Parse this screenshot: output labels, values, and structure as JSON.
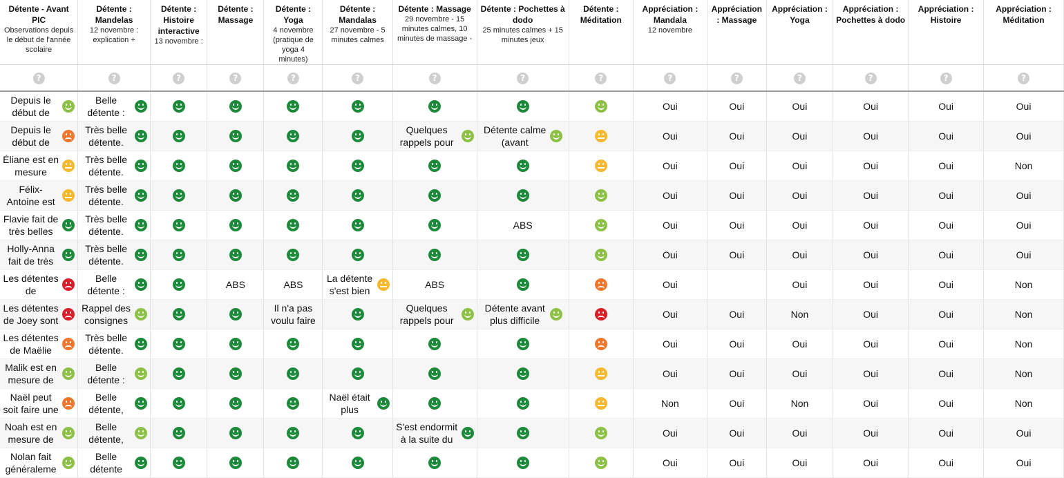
{
  "colors": {
    "dark-green": "#1c8a3a",
    "light-green": "#8dc046",
    "yellow": "#f5b82e",
    "orange": "#f0772d",
    "red": "#d91e2a"
  },
  "columns": [
    {
      "title": "Détente - Avant PIC",
      "sub": "Observations depuis le début de l'année scolaire"
    },
    {
      "title": "Détente : Mandelas",
      "sub": "12 novembre : explication +"
    },
    {
      "title": "Détente : Histoire interactive",
      "sub": "13 novembre :"
    },
    {
      "title": "Détente : Massage",
      "sub": ""
    },
    {
      "title": "Détente : Yoga",
      "sub": "4 novembre (pratique de yoga 4 minutes)"
    },
    {
      "title": "Détente : Mandalas",
      "sub": "27 novembre - 5 minutes calmes"
    },
    {
      "title": "Détente : Massage",
      "sub": "29 novembre - 15 minutes calmes, 10 minutes de massage -"
    },
    {
      "title": "Détente : Pochettes à dodo",
      "sub": "25 minutes calmes + 15 minutes jeux"
    },
    {
      "title": "Détente : Méditation",
      "sub": ""
    },
    {
      "title": "Appréciation : Mandala",
      "sub": "12 novembre"
    },
    {
      "title": "Appréciation : Massage",
      "sub": ""
    },
    {
      "title": "Appréciation : Yoga",
      "sub": ""
    },
    {
      "title": "Appréciation : Pochettes à dodo",
      "sub": ""
    },
    {
      "title": "Appréciation : Histoire",
      "sub": ""
    },
    {
      "title": "Appréciation : Méditation",
      "sub": ""
    }
  ],
  "help_icon": "?",
  "rows": [
    {
      "cells": [
        {
          "text": "Depuis le début de",
          "face": "light-green"
        },
        {
          "text": "Belle détente :",
          "face": "dark-green"
        },
        {
          "face": "dark-green"
        },
        {
          "face": "dark-green"
        },
        {
          "face": "dark-green"
        },
        {
          "face": "dark-green"
        },
        {
          "face": "dark-green"
        },
        {
          "face": "dark-green"
        },
        {
          "face": "light-green"
        },
        {
          "text": "Oui"
        },
        {
          "text": "Oui"
        },
        {
          "text": "Oui"
        },
        {
          "text": "Oui"
        },
        {
          "text": "Oui"
        },
        {
          "text": "Oui"
        }
      ]
    },
    {
      "cells": [
        {
          "text": "Depuis le début de",
          "face": "orange"
        },
        {
          "text": "Très belle détente.",
          "face": "dark-green"
        },
        {
          "face": "dark-green"
        },
        {
          "face": "dark-green"
        },
        {
          "face": "dark-green"
        },
        {
          "face": "dark-green"
        },
        {
          "text": "Quelques rappels pour",
          "face": "light-green"
        },
        {
          "text": "Détente calme (avant",
          "face": "light-green"
        },
        {
          "face": "yellow"
        },
        {
          "text": "Oui"
        },
        {
          "text": "Oui"
        },
        {
          "text": "Oui"
        },
        {
          "text": "Oui"
        },
        {
          "text": "Oui"
        },
        {
          "text": "Oui"
        }
      ]
    },
    {
      "cells": [
        {
          "text": "Éliane est en mesure",
          "face": "yellow"
        },
        {
          "text": "Très belle détente.",
          "face": "dark-green"
        },
        {
          "face": "dark-green"
        },
        {
          "face": "dark-green"
        },
        {
          "face": "dark-green"
        },
        {
          "face": "dark-green"
        },
        {
          "face": "dark-green"
        },
        {
          "face": "dark-green"
        },
        {
          "face": "yellow"
        },
        {
          "text": "Oui"
        },
        {
          "text": "Oui"
        },
        {
          "text": "Oui"
        },
        {
          "text": "Oui"
        },
        {
          "text": "Oui"
        },
        {
          "text": "Non"
        }
      ]
    },
    {
      "cells": [
        {
          "text": "Félix-Antoine est",
          "face": "yellow"
        },
        {
          "text": "Très belle détente.",
          "face": "dark-green"
        },
        {
          "face": "dark-green"
        },
        {
          "face": "dark-green"
        },
        {
          "face": "dark-green"
        },
        {
          "face": "dark-green"
        },
        {
          "face": "dark-green"
        },
        {
          "face": "dark-green"
        },
        {
          "face": "light-green"
        },
        {
          "text": "Oui"
        },
        {
          "text": "Oui"
        },
        {
          "text": "Oui"
        },
        {
          "text": "Oui"
        },
        {
          "text": "Oui"
        },
        {
          "text": "Oui"
        }
      ]
    },
    {
      "cells": [
        {
          "text": "Flavie fait de très belles",
          "face": "dark-green"
        },
        {
          "text": "Très belle détente.",
          "face": "dark-green"
        },
        {
          "face": "dark-green"
        },
        {
          "face": "dark-green"
        },
        {
          "face": "dark-green"
        },
        {
          "face": "dark-green"
        },
        {
          "face": "dark-green"
        },
        {
          "text": "ABS"
        },
        {
          "face": "light-green"
        },
        {
          "text": "Oui"
        },
        {
          "text": "Oui"
        },
        {
          "text": "Oui"
        },
        {
          "text": "Oui"
        },
        {
          "text": "Oui"
        },
        {
          "text": "Oui"
        }
      ]
    },
    {
      "cells": [
        {
          "text": "Holly-Anna fait de très",
          "face": "dark-green"
        },
        {
          "text": "Très belle détente.",
          "face": "dark-green"
        },
        {
          "face": "dark-green"
        },
        {
          "face": "dark-green"
        },
        {
          "face": "dark-green"
        },
        {
          "face": "dark-green"
        },
        {
          "face": "dark-green"
        },
        {
          "face": "dark-green"
        },
        {
          "face": "light-green"
        },
        {
          "text": "Oui"
        },
        {
          "text": "Oui"
        },
        {
          "text": "Oui"
        },
        {
          "text": "Oui"
        },
        {
          "text": "Oui"
        },
        {
          "text": "Oui"
        }
      ]
    },
    {
      "cells": [
        {
          "text": "Les détentes de",
          "face": "red"
        },
        {
          "text": "Belle détente :",
          "face": "dark-green"
        },
        {
          "face": "dark-green"
        },
        {
          "text": "ABS"
        },
        {
          "text": "ABS"
        },
        {
          "text": "La détente s'est bien",
          "face": "yellow"
        },
        {
          "text": "ABS"
        },
        {
          "face": "dark-green"
        },
        {
          "face": "orange"
        },
        {
          "text": "Oui"
        },
        {
          "text": ""
        },
        {
          "text": "Oui"
        },
        {
          "text": "Oui"
        },
        {
          "text": "Oui"
        },
        {
          "text": "Non"
        }
      ]
    },
    {
      "cells": [
        {
          "text": "Les détentes de Joey sont",
          "face": "red"
        },
        {
          "text": "Rappel des consignes",
          "face": "light-green"
        },
        {
          "face": "dark-green"
        },
        {
          "face": "dark-green"
        },
        {
          "text": "Il n'a pas voulu faire"
        },
        {
          "face": "dark-green"
        },
        {
          "text": "Quelques rappels pour",
          "face": "light-green"
        },
        {
          "text": "Détente avant plus difficile",
          "face": "light-green"
        },
        {
          "face": "red"
        },
        {
          "text": "Oui"
        },
        {
          "text": "Oui"
        },
        {
          "text": "Non"
        },
        {
          "text": "Oui"
        },
        {
          "text": "Oui"
        },
        {
          "text": "Non"
        }
      ]
    },
    {
      "cells": [
        {
          "text": "Les détentes de Maëlie",
          "face": "orange"
        },
        {
          "text": "Très belle détente.",
          "face": "dark-green"
        },
        {
          "face": "dark-green"
        },
        {
          "face": "dark-green"
        },
        {
          "face": "dark-green"
        },
        {
          "face": "dark-green"
        },
        {
          "face": "dark-green"
        },
        {
          "face": "dark-green"
        },
        {
          "face": "orange"
        },
        {
          "text": "Oui"
        },
        {
          "text": "Oui"
        },
        {
          "text": "Oui"
        },
        {
          "text": "Oui"
        },
        {
          "text": "Oui"
        },
        {
          "text": "Non"
        }
      ]
    },
    {
      "cells": [
        {
          "text": "Malik est en mesure de",
          "face": "light-green"
        },
        {
          "text": "Belle détente :",
          "face": "light-green"
        },
        {
          "face": "dark-green"
        },
        {
          "face": "dark-green"
        },
        {
          "face": "dark-green"
        },
        {
          "face": "dark-green"
        },
        {
          "face": "dark-green"
        },
        {
          "face": "dark-green"
        },
        {
          "face": "yellow"
        },
        {
          "text": "Oui"
        },
        {
          "text": "Oui"
        },
        {
          "text": "Oui"
        },
        {
          "text": "Oui"
        },
        {
          "text": "Oui"
        },
        {
          "text": "Non"
        }
      ]
    },
    {
      "cells": [
        {
          "text": "Naël peut soit faire une",
          "face": "orange"
        },
        {
          "text": "Belle détente,",
          "face": "dark-green"
        },
        {
          "face": "dark-green"
        },
        {
          "face": "dark-green"
        },
        {
          "face": "dark-green"
        },
        {
          "text": "Naël était plus",
          "face": "dark-green"
        },
        {
          "face": "dark-green"
        },
        {
          "face": "dark-green"
        },
        {
          "face": "yellow"
        },
        {
          "text": "Non"
        },
        {
          "text": "Oui"
        },
        {
          "text": "Non"
        },
        {
          "text": "Oui"
        },
        {
          "text": "Oui"
        },
        {
          "text": "Non"
        }
      ]
    },
    {
      "cells": [
        {
          "text": "Noah est en mesure de",
          "face": "light-green"
        },
        {
          "text": "Belle détente,",
          "face": "light-green"
        },
        {
          "face": "dark-green"
        },
        {
          "face": "dark-green"
        },
        {
          "face": "dark-green"
        },
        {
          "face": "dark-green"
        },
        {
          "text": "S'est endormit à la suite du",
          "face": "dark-green"
        },
        {
          "face": "dark-green"
        },
        {
          "face": "light-green"
        },
        {
          "text": "Oui"
        },
        {
          "text": "Oui"
        },
        {
          "text": "Oui"
        },
        {
          "text": "Oui"
        },
        {
          "text": "Oui"
        },
        {
          "text": "Oui"
        }
      ]
    },
    {
      "cells": [
        {
          "text": "Nolan fait généraleme",
          "face": "light-green"
        },
        {
          "text": "Belle détente",
          "face": "dark-green"
        },
        {
          "face": "dark-green"
        },
        {
          "face": "dark-green"
        },
        {
          "face": "dark-green"
        },
        {
          "face": "dark-green"
        },
        {
          "face": "dark-green"
        },
        {
          "face": "dark-green"
        },
        {
          "face": "light-green"
        },
        {
          "text": "Oui"
        },
        {
          "text": "Oui"
        },
        {
          "text": "Oui"
        },
        {
          "text": "Oui"
        },
        {
          "text": "Oui"
        },
        {
          "text": "Oui"
        }
      ]
    }
  ]
}
